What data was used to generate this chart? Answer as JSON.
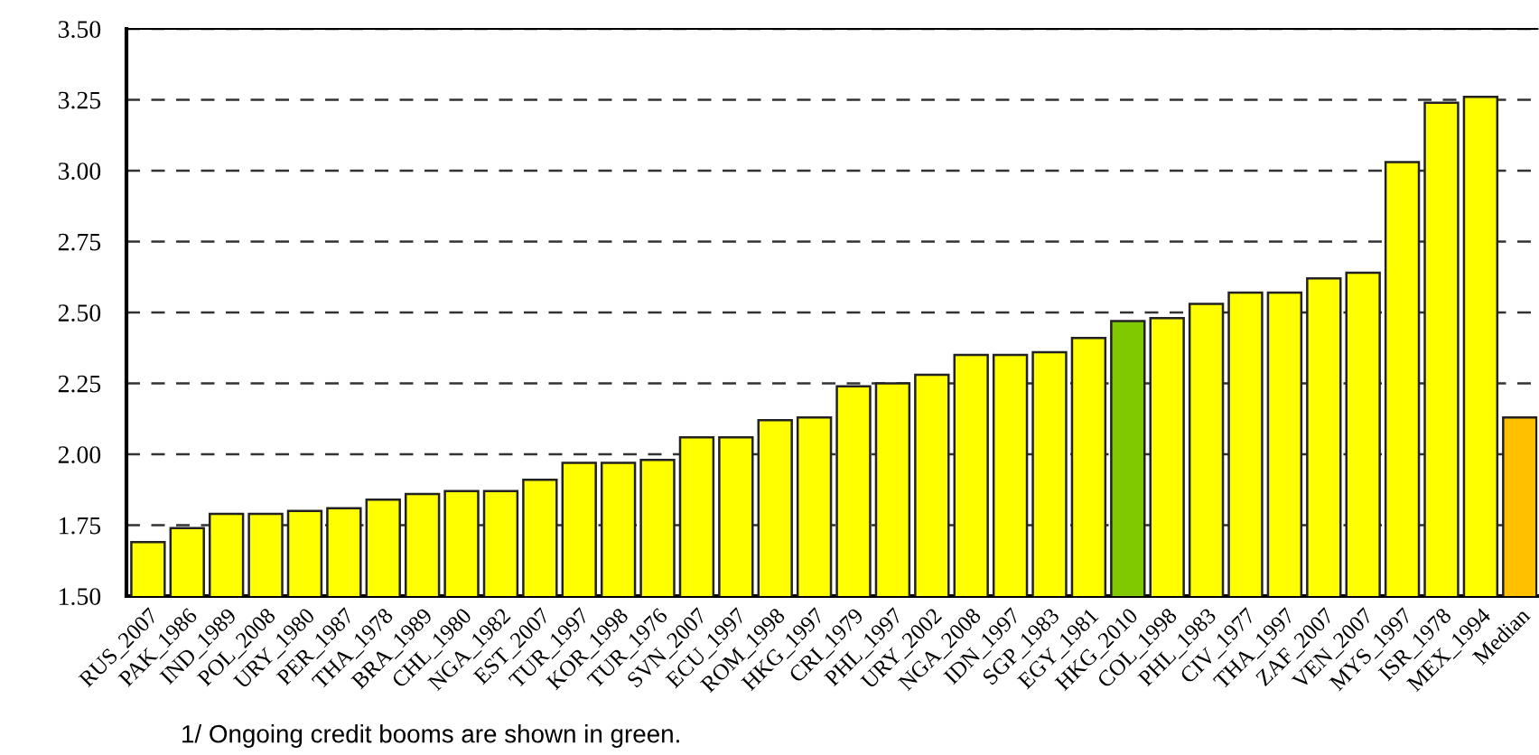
{
  "chart_data": {
    "type": "bar",
    "categories": [
      "RUS_2007",
      "PAK_1986",
      "IND_1989",
      "POL_2008",
      "URY_1980",
      "PER_1987",
      "THA_1978",
      "BRA_1989",
      "CHL_1980",
      "NGA_1982",
      "EST_2007",
      "TUR_1997",
      "KOR_1998",
      "TUR_1976",
      "SVN_2007",
      "ECU_1997",
      "ROM_1998",
      "HKG_1997",
      "CRI_1979",
      "PHL_1997",
      "URY_2002",
      "NGA_2008",
      "IDN_1997",
      "SGP_1983",
      "EGY_1981",
      "HKG_2010",
      "COL_1998",
      "PHL_1983",
      "CIV_1977",
      "THA_1997",
      "ZAF_2007",
      "VEN_2007",
      "MYS_1997",
      "ISR_1978",
      "MEX_1994",
      "Median"
    ],
    "values": [
      1.69,
      1.74,
      1.79,
      1.79,
      1.8,
      1.81,
      1.84,
      1.86,
      1.87,
      1.87,
      1.91,
      1.97,
      1.97,
      1.98,
      2.06,
      2.06,
      2.12,
      2.13,
      2.24,
      2.25,
      2.28,
      2.35,
      2.35,
      2.36,
      2.41,
      2.47,
      2.48,
      2.53,
      2.57,
      2.57,
      2.62,
      2.64,
      3.03,
      3.24,
      3.26,
      2.13
    ],
    "colors": [
      "#ffff00",
      "#ffff00",
      "#ffff00",
      "#ffff00",
      "#ffff00",
      "#ffff00",
      "#ffff00",
      "#ffff00",
      "#ffff00",
      "#ffff00",
      "#ffff00",
      "#ffff00",
      "#ffff00",
      "#ffff00",
      "#ffff00",
      "#ffff00",
      "#ffff00",
      "#ffff00",
      "#ffff00",
      "#ffff00",
      "#ffff00",
      "#ffff00",
      "#ffff00",
      "#ffff00",
      "#ffff00",
      "#80c800",
      "#ffff00",
      "#ffff00",
      "#ffff00",
      "#ffff00",
      "#ffff00",
      "#ffff00",
      "#ffff00",
      "#ffff00",
      "#ffff00",
      "#ffc000"
    ],
    "ylim": [
      1.5,
      3.5
    ],
    "yticks": [
      {
        "value": 1.5,
        "label": "1.50"
      },
      {
        "value": 1.75,
        "label": "1.75"
      },
      {
        "value": 2.0,
        "label": "2.00"
      },
      {
        "value": 2.25,
        "label": "2.25"
      },
      {
        "value": 2.5,
        "label": "2.50"
      },
      {
        "value": 2.75,
        "label": "2.75"
      },
      {
        "value": 3.0,
        "label": "3.00"
      },
      {
        "value": 3.25,
        "label": "3.25"
      },
      {
        "value": 3.5,
        "label": "3.50"
      }
    ],
    "grid": "y",
    "annotations": [
      "1/ Ongoing credit booms are shown in green."
    ]
  }
}
